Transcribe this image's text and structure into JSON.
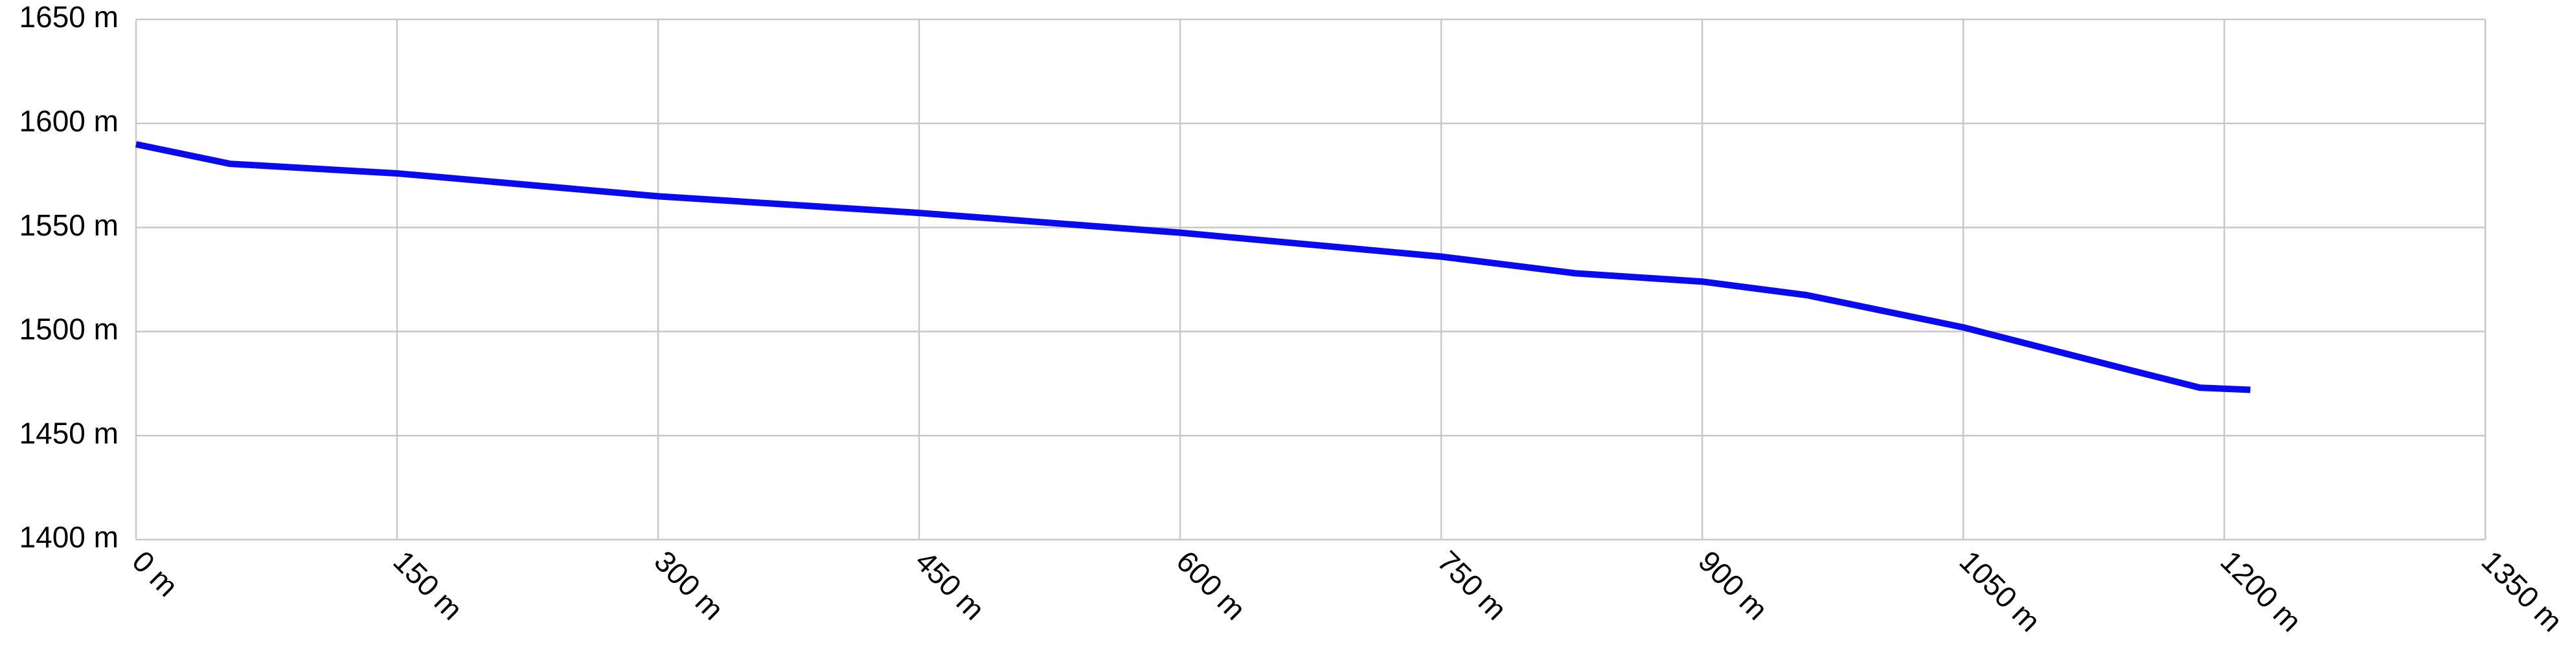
{
  "chart_data": {
    "type": "line",
    "x": [
      0,
      54,
      150,
      300,
      450,
      600,
      750,
      827,
      900,
      960,
      1050,
      1148,
      1186,
      1215
    ],
    "series": [
      {
        "color": "#0a0af0",
        "values": [
          1590,
          1580.6,
          1576,
          1565,
          1557,
          1547.5,
          1536,
          1528,
          1524,
          1517.5,
          1502,
          1481,
          1473,
          1472
        ]
      }
    ],
    "xlim": [
      0,
      1350
    ],
    "xticks": [
      {
        "value": 0,
        "label": "0 m"
      },
      {
        "value": 150,
        "label": "150 m"
      },
      {
        "value": 300,
        "label": "300 m"
      },
      {
        "value": 450,
        "label": "450 m"
      },
      {
        "value": 600,
        "label": "600 m"
      },
      {
        "value": 750,
        "label": "750 m"
      },
      {
        "value": 900,
        "label": "900 m"
      },
      {
        "value": 1050,
        "label": "1050 m"
      },
      {
        "value": 1200,
        "label": "1200 m"
      },
      {
        "value": 1350,
        "label": "1350 m"
      }
    ],
    "ylim": [
      1400,
      1650
    ],
    "yticks": [
      {
        "value": 1400,
        "label": "1400 m"
      },
      {
        "value": 1450,
        "label": "1450 m"
      },
      {
        "value": 1500,
        "label": "1500 m"
      },
      {
        "value": 1550,
        "label": "1550 m"
      },
      {
        "value": 1600,
        "label": "1600 m"
      },
      {
        "value": 1650,
        "label": "1650 m"
      }
    ],
    "grid": true
  }
}
